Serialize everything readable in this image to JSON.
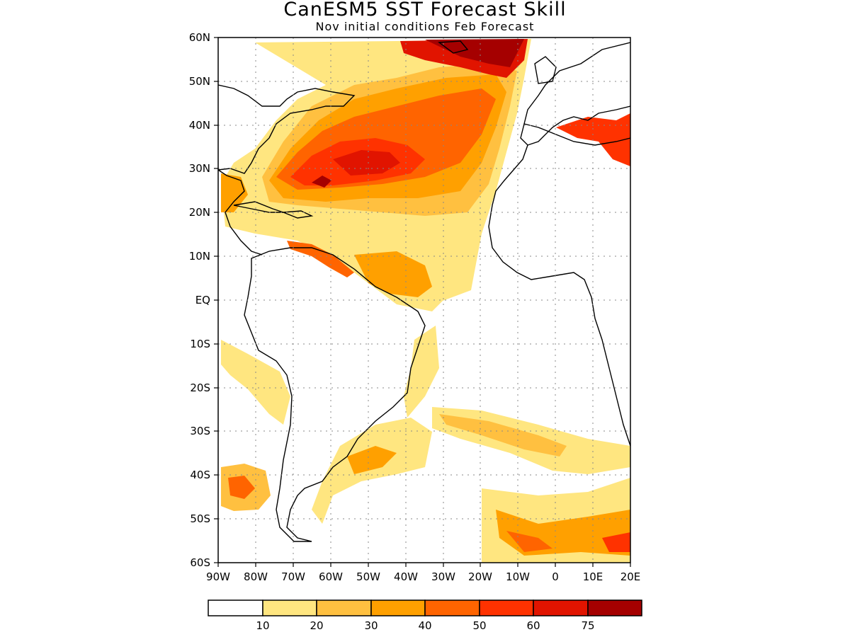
{
  "title": "CanESM5 SST Forecast Skill",
  "subtitle": "Nov initial conditions  Feb Forecast",
  "map": {
    "region": "Atlantic Ocean",
    "lat_labels": [
      "60N",
      "50N",
      "40N",
      "30N",
      "20N",
      "10N",
      "EQ",
      "10S",
      "20S",
      "30S",
      "40S",
      "50S",
      "60S"
    ],
    "lon_labels": [
      "90W",
      "80W",
      "70W",
      "60W",
      "50W",
      "40W",
      "30W",
      "20W",
      "10W",
      "0",
      "10E",
      "20E"
    ],
    "lat_range": [
      -60,
      60
    ],
    "lon_range": [
      -90,
      20
    ],
    "grid": "dotted"
  },
  "colorbar": {
    "colors": [
      "#ffffff",
      "#ffe680",
      "#ffc040",
      "#ffa000",
      "#ff6400",
      "#ff3200",
      "#e11400",
      "#a50000"
    ],
    "labels": [
      "10",
      "20",
      "30",
      "40",
      "50",
      "60",
      "75"
    ]
  },
  "colors": {
    "c10": "#ffe680",
    "c20": "#ffc040",
    "c30": "#ffa000",
    "c40": "#ff6400",
    "c50": "#ff3200",
    "c60": "#e11400",
    "c75": "#a50000"
  }
}
